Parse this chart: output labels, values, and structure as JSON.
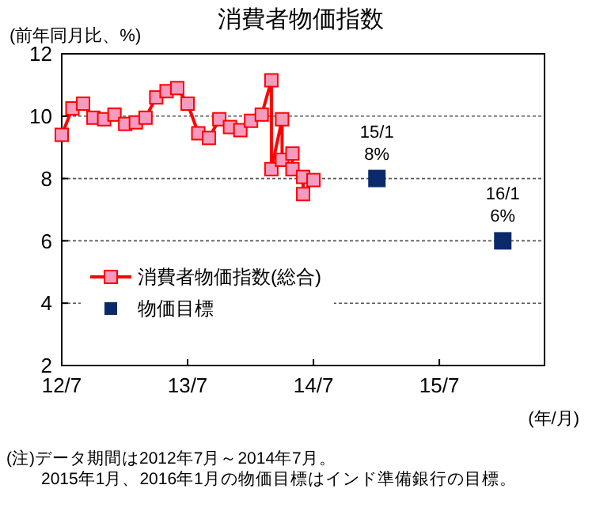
{
  "chart_data": {
    "type": "line",
    "title": "消費者物価指数",
    "ylabel": "(前年同月比、%)",
    "xlabel": "(年/月)",
    "xlim": [
      "2012-07",
      "2016-05"
    ],
    "xticks": [
      {
        "value": "2012-07",
        "label": "12/7"
      },
      {
        "value": "2013-07",
        "label": "13/7"
      },
      {
        "value": "2014-07",
        "label": "14/7"
      },
      {
        "value": "2015-07",
        "label": "15/7"
      }
    ],
    "ylim": [
      2,
      12
    ],
    "yticks": [
      2,
      4,
      6,
      8,
      10,
      12
    ],
    "grid": "y",
    "legend": "bottom left",
    "series": [
      {
        "name": "消費者物価指数(総合)",
        "marker": "square",
        "color": "#ff0000",
        "x": [
          "2012-07",
          "2012-08",
          "2012-09",
          "2012-10",
          "2012-11",
          "2012-12",
          "2013-01",
          "2013-02",
          "2013-03",
          "2013-04",
          "2013-05",
          "2013-06",
          "2013-07",
          "2013-08",
          "2013-09",
          "2013-10",
          "2013-11",
          "2013-12",
          "2014-01",
          "2014-02",
          "2014-03",
          "2014-03",
          "2014-04",
          "2014-04",
          "2014-05",
          "2014-05",
          "2014-06",
          "2014-06",
          "2014-07"
        ],
        "values": [
          9.4,
          10.25,
          10.4,
          9.95,
          9.9,
          10.05,
          9.75,
          9.8,
          9.95,
          10.6,
          10.8,
          10.9,
          10.4,
          9.45,
          9.3,
          9.9,
          9.65,
          9.55,
          9.85,
          10.05,
          11.15,
          8.3,
          9.9,
          8.6,
          8.8,
          8.3,
          8.05,
          7.5,
          7.95
        ]
      },
      {
        "name": "物価目標",
        "type": "scatter",
        "marker": "square",
        "color": "#0a2a6b",
        "x": [
          "2015-01",
          "2016-01"
        ],
        "values": [
          8,
          6
        ]
      }
    ],
    "annotations": [
      {
        "text": "15/1\n8%",
        "x": "2015-01",
        "y": 8
      },
      {
        "text": "16/1\n6%",
        "x": "2016-01",
        "y": 6
      },
      "(注)データ期間は2012年7月～2014年7月。",
      "2015年1月、2016年1月の物価目標はインド準備銀行の目標。"
    ]
  }
}
